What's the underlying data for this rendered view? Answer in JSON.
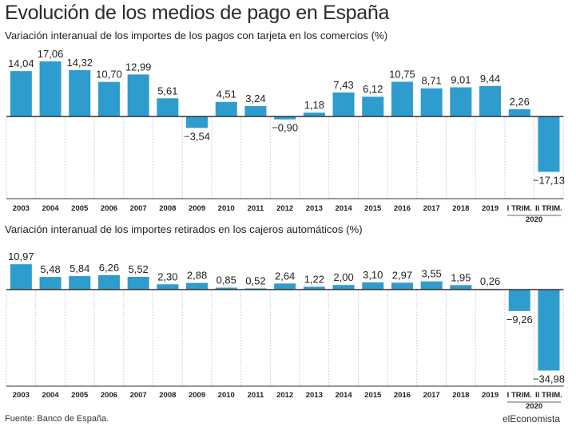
{
  "title": "Evolución de los medios de pago en España",
  "source": "Fuente: Banco de España.",
  "brand": "elEconomista",
  "colors": {
    "bar": "#2e9ccd",
    "zero_line": "#333333",
    "grid": "#bbbbbb"
  },
  "chart_data": [
    {
      "type": "bar",
      "title": "Variación interanual de los importes de los pagos con tarjeta en los comercios (%)",
      "categories": [
        "2003",
        "2004",
        "2005",
        "2006",
        "2007",
        "2008",
        "2009",
        "2010",
        "2011",
        "2012",
        "2013",
        "2014",
        "2015",
        "2016",
        "2017",
        "2018",
        "2019",
        "I TRIM.",
        "II TRIM."
      ],
      "group_label": "2020",
      "values": [
        14.04,
        17.06,
        14.32,
        10.7,
        12.99,
        5.61,
        -3.54,
        4.51,
        3.24,
        -0.9,
        1.18,
        7.43,
        6.12,
        10.75,
        8.71,
        9.01,
        9.44,
        2.26,
        -17.13
      ],
      "labels": [
        "14,04",
        "17,06",
        "14,32",
        "10,70",
        "12,99",
        "5,61",
        "−3,54",
        "4,51",
        "3,24",
        "−0,90",
        "1,18",
        "7,43",
        "6,12",
        "10,75",
        "8,71",
        "9,01",
        "9,44",
        "2,26",
        "−17,13"
      ],
      "grid": true
    },
    {
      "type": "bar",
      "title": "Variación interanual de los importes retirados en los cajeros automáticos (%)",
      "categories": [
        "2003",
        "2004",
        "2005",
        "2006",
        "2007",
        "2008",
        "2009",
        "2010",
        "2011",
        "2012",
        "2013",
        "2014",
        "2015",
        "2016",
        "2017",
        "2018",
        "2019",
        "I TRIM.",
        "II TRIM."
      ],
      "group_label": "2020",
      "values": [
        10.97,
        5.48,
        5.84,
        6.26,
        5.52,
        2.3,
        2.88,
        0.85,
        0.52,
        2.64,
        1.22,
        2.0,
        3.1,
        2.97,
        3.55,
        1.95,
        0.26,
        -9.26,
        -34.98
      ],
      "labels": [
        "10,97",
        "5,48",
        "5,84",
        "6,26",
        "5,52",
        "2,30",
        "2,88",
        "0,85",
        "0,52",
        "2,64",
        "1,22",
        "2,00",
        "3,10",
        "2,97",
        "3,55",
        "1,95",
        "0,26",
        "−9,26",
        "−34,98"
      ],
      "grid": true
    }
  ]
}
